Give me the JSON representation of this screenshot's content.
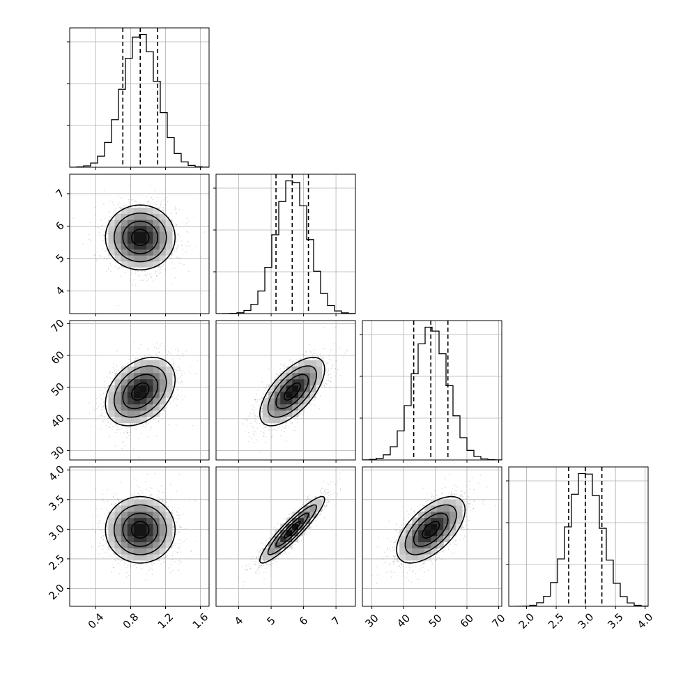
{
  "chart_data": {
    "type": "corner",
    "grid": true,
    "parameters": [
      {
        "id": "p1",
        "range": [
          0.1,
          1.7
        ],
        "ticks": [
          0.4,
          0.8,
          1.2,
          1.6
        ],
        "tick_labels": [
          "0.4",
          "0.8",
          "1.2",
          "1.6"
        ],
        "mean": 0.91,
        "std": 0.2,
        "quantiles": [
          0.71,
          0.91,
          1.11
        ]
      },
      {
        "id": "p2",
        "range": [
          3.3,
          7.6
        ],
        "ticks": [
          4,
          5,
          6,
          7
        ],
        "tick_labels": [
          "4",
          "5",
          "6",
          "7"
        ],
        "mean": 5.65,
        "std": 0.5,
        "quantiles": [
          5.15,
          5.65,
          6.15
        ]
      },
      {
        "id": "p3",
        "range": [
          27,
          71
        ],
        "ticks": [
          30,
          40,
          50,
          60,
          70
        ],
        "tick_labels": [
          "30",
          "40",
          "50",
          "60",
          "70"
        ],
        "mean": 48.6,
        "std": 5.4,
        "quantiles": [
          43.2,
          48.6,
          54.0
        ]
      },
      {
        "id": "p4",
        "range": [
          1.7,
          4.05
        ],
        "ticks": [
          2.0,
          2.5,
          3.0,
          3.5,
          4.0
        ],
        "tick_labels": [
          "2.0",
          "2.5",
          "3.0",
          "3.5",
          "4.0"
        ],
        "mean": 2.99,
        "std": 0.28,
        "quantiles": [
          2.71,
          2.99,
          3.27
        ]
      }
    ],
    "correlations": [
      {
        "x": "p1",
        "y": "p2",
        "rho": 0.0
      },
      {
        "x": "p1",
        "y": "p3",
        "rho": 0.35
      },
      {
        "x": "p2",
        "y": "p3",
        "rho": 0.65
      },
      {
        "x": "p1",
        "y": "p4",
        "rho": 0.0
      },
      {
        "x": "p2",
        "y": "p4",
        "rho": 0.92
      },
      {
        "x": "p3",
        "y": "p4",
        "rho": 0.6
      }
    ],
    "histogram_bins": 20,
    "contour_levels_sigma": [
      0.5,
      1.0,
      1.5,
      2.0
    ],
    "scatter_samples": 1800,
    "quantile_lines": "dashed"
  }
}
